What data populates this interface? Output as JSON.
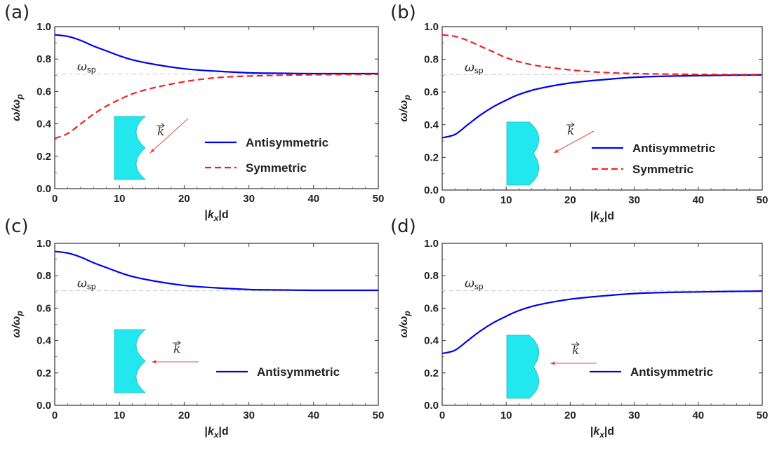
{
  "chart_data": [
    {
      "type": "line",
      "panel": "(a)",
      "xlabel": "|k_x|d",
      "ylabel": "ω/ω_p",
      "xlim": [
        0,
        50
      ],
      "ylim": [
        0,
        1
      ],
      "xticks": [
        "0",
        "10",
        "20",
        "30",
        "40",
        "50"
      ],
      "yticks": [
        "0.0",
        "0.2",
        "0.4",
        "0.6",
        "0.8",
        "1.0"
      ],
      "annotation": "ω_sp",
      "reference_y": 0.707,
      "inset": "concave",
      "inset_label": "k",
      "arrow_direction": "oblique",
      "series": [
        {
          "name": "Antisymmetric",
          "color": "#0000ee",
          "dash": "solid",
          "x": [
            0,
            2,
            4,
            6,
            8,
            10,
            12,
            15,
            20,
            25,
            30,
            35,
            40,
            45,
            50
          ],
          "y": [
            0.95,
            0.94,
            0.915,
            0.88,
            0.85,
            0.82,
            0.795,
            0.77,
            0.74,
            0.725,
            0.715,
            0.712,
            0.71,
            0.71,
            0.71
          ]
        },
        {
          "name": "Symmetric",
          "color": "#ee2222",
          "dash": "dashed",
          "x": [
            0,
            2,
            4,
            6,
            8,
            10,
            12,
            15,
            20,
            25,
            30,
            35,
            40,
            45,
            50
          ],
          "y": [
            0.31,
            0.34,
            0.4,
            0.46,
            0.51,
            0.55,
            0.585,
            0.62,
            0.66,
            0.685,
            0.695,
            0.7,
            0.703,
            0.705,
            0.706
          ]
        }
      ]
    },
    {
      "type": "line",
      "panel": "(b)",
      "xlabel": "|k_x|d",
      "ylabel": "ω/ω_p",
      "xlim": [
        0,
        50
      ],
      "ylim": [
        0,
        1
      ],
      "xticks": [
        "0",
        "10",
        "20",
        "30",
        "40",
        "50"
      ],
      "yticks": [
        "0.0",
        "0.2",
        "0.4",
        "0.6",
        "0.8",
        "1.0"
      ],
      "annotation": "ω_sp",
      "reference_y": 0.707,
      "inset": "convex",
      "inset_label": "k",
      "arrow_direction": "oblique",
      "series": [
        {
          "name": "Antisymmetric",
          "color": "#0000ee",
          "dash": "solid",
          "x": [
            0,
            2,
            4,
            6,
            8,
            10,
            12,
            15,
            20,
            25,
            30,
            35,
            40,
            45,
            50
          ],
          "y": [
            0.32,
            0.34,
            0.4,
            0.46,
            0.51,
            0.55,
            0.585,
            0.62,
            0.655,
            0.675,
            0.69,
            0.697,
            0.7,
            0.703,
            0.705
          ]
        },
        {
          "name": "Symmetric",
          "color": "#ee2222",
          "dash": "dashed",
          "x": [
            0,
            2,
            4,
            6,
            8,
            10,
            12,
            15,
            20,
            25,
            30,
            35,
            40,
            45,
            50
          ],
          "y": [
            0.95,
            0.94,
            0.915,
            0.88,
            0.845,
            0.81,
            0.785,
            0.76,
            0.735,
            0.72,
            0.713,
            0.71,
            0.708,
            0.707,
            0.707
          ]
        }
      ]
    },
    {
      "type": "line",
      "panel": "(c)",
      "xlabel": "|k_x|d",
      "ylabel": "ω/ω_p",
      "xlim": [
        0,
        50
      ],
      "ylim": [
        0,
        1
      ],
      "xticks": [
        "0",
        "10",
        "20",
        "30",
        "40",
        "50"
      ],
      "yticks": [
        "0.0",
        "0.2",
        "0.4",
        "0.6",
        "0.8",
        "1.0"
      ],
      "annotation": "ω_sp",
      "reference_y": 0.707,
      "inset": "concave",
      "inset_label": "k",
      "arrow_direction": "horizontal",
      "series": [
        {
          "name": "Antisymmetric",
          "color": "#0000ee",
          "dash": "solid",
          "x": [
            0,
            2,
            4,
            6,
            8,
            10,
            12,
            15,
            20,
            25,
            30,
            35,
            40,
            45,
            50
          ],
          "y": [
            0.95,
            0.94,
            0.915,
            0.88,
            0.85,
            0.82,
            0.795,
            0.77,
            0.74,
            0.725,
            0.715,
            0.712,
            0.71,
            0.71,
            0.71
          ]
        }
      ]
    },
    {
      "type": "line",
      "panel": "(d)",
      "xlabel": "|k_x|d",
      "ylabel": "ω/ω_p",
      "xlim": [
        0,
        50
      ],
      "ylim": [
        0,
        1
      ],
      "xticks": [
        "0",
        "10",
        "20",
        "30",
        "40",
        "50"
      ],
      "yticks": [
        "0.0",
        "0.2",
        "0.4",
        "0.6",
        "0.8",
        "1.0"
      ],
      "annotation": "ω_sp",
      "reference_y": 0.707,
      "inset": "convex",
      "inset_label": "k",
      "arrow_direction": "horizontal",
      "series": [
        {
          "name": "Antisymmetric",
          "color": "#0000ee",
          "dash": "solid",
          "x": [
            0,
            2,
            4,
            6,
            8,
            10,
            12,
            15,
            20,
            25,
            30,
            35,
            40,
            45,
            50
          ],
          "y": [
            0.32,
            0.34,
            0.4,
            0.46,
            0.51,
            0.55,
            0.585,
            0.62,
            0.655,
            0.675,
            0.69,
            0.697,
            0.7,
            0.703,
            0.705
          ]
        }
      ]
    }
  ]
}
